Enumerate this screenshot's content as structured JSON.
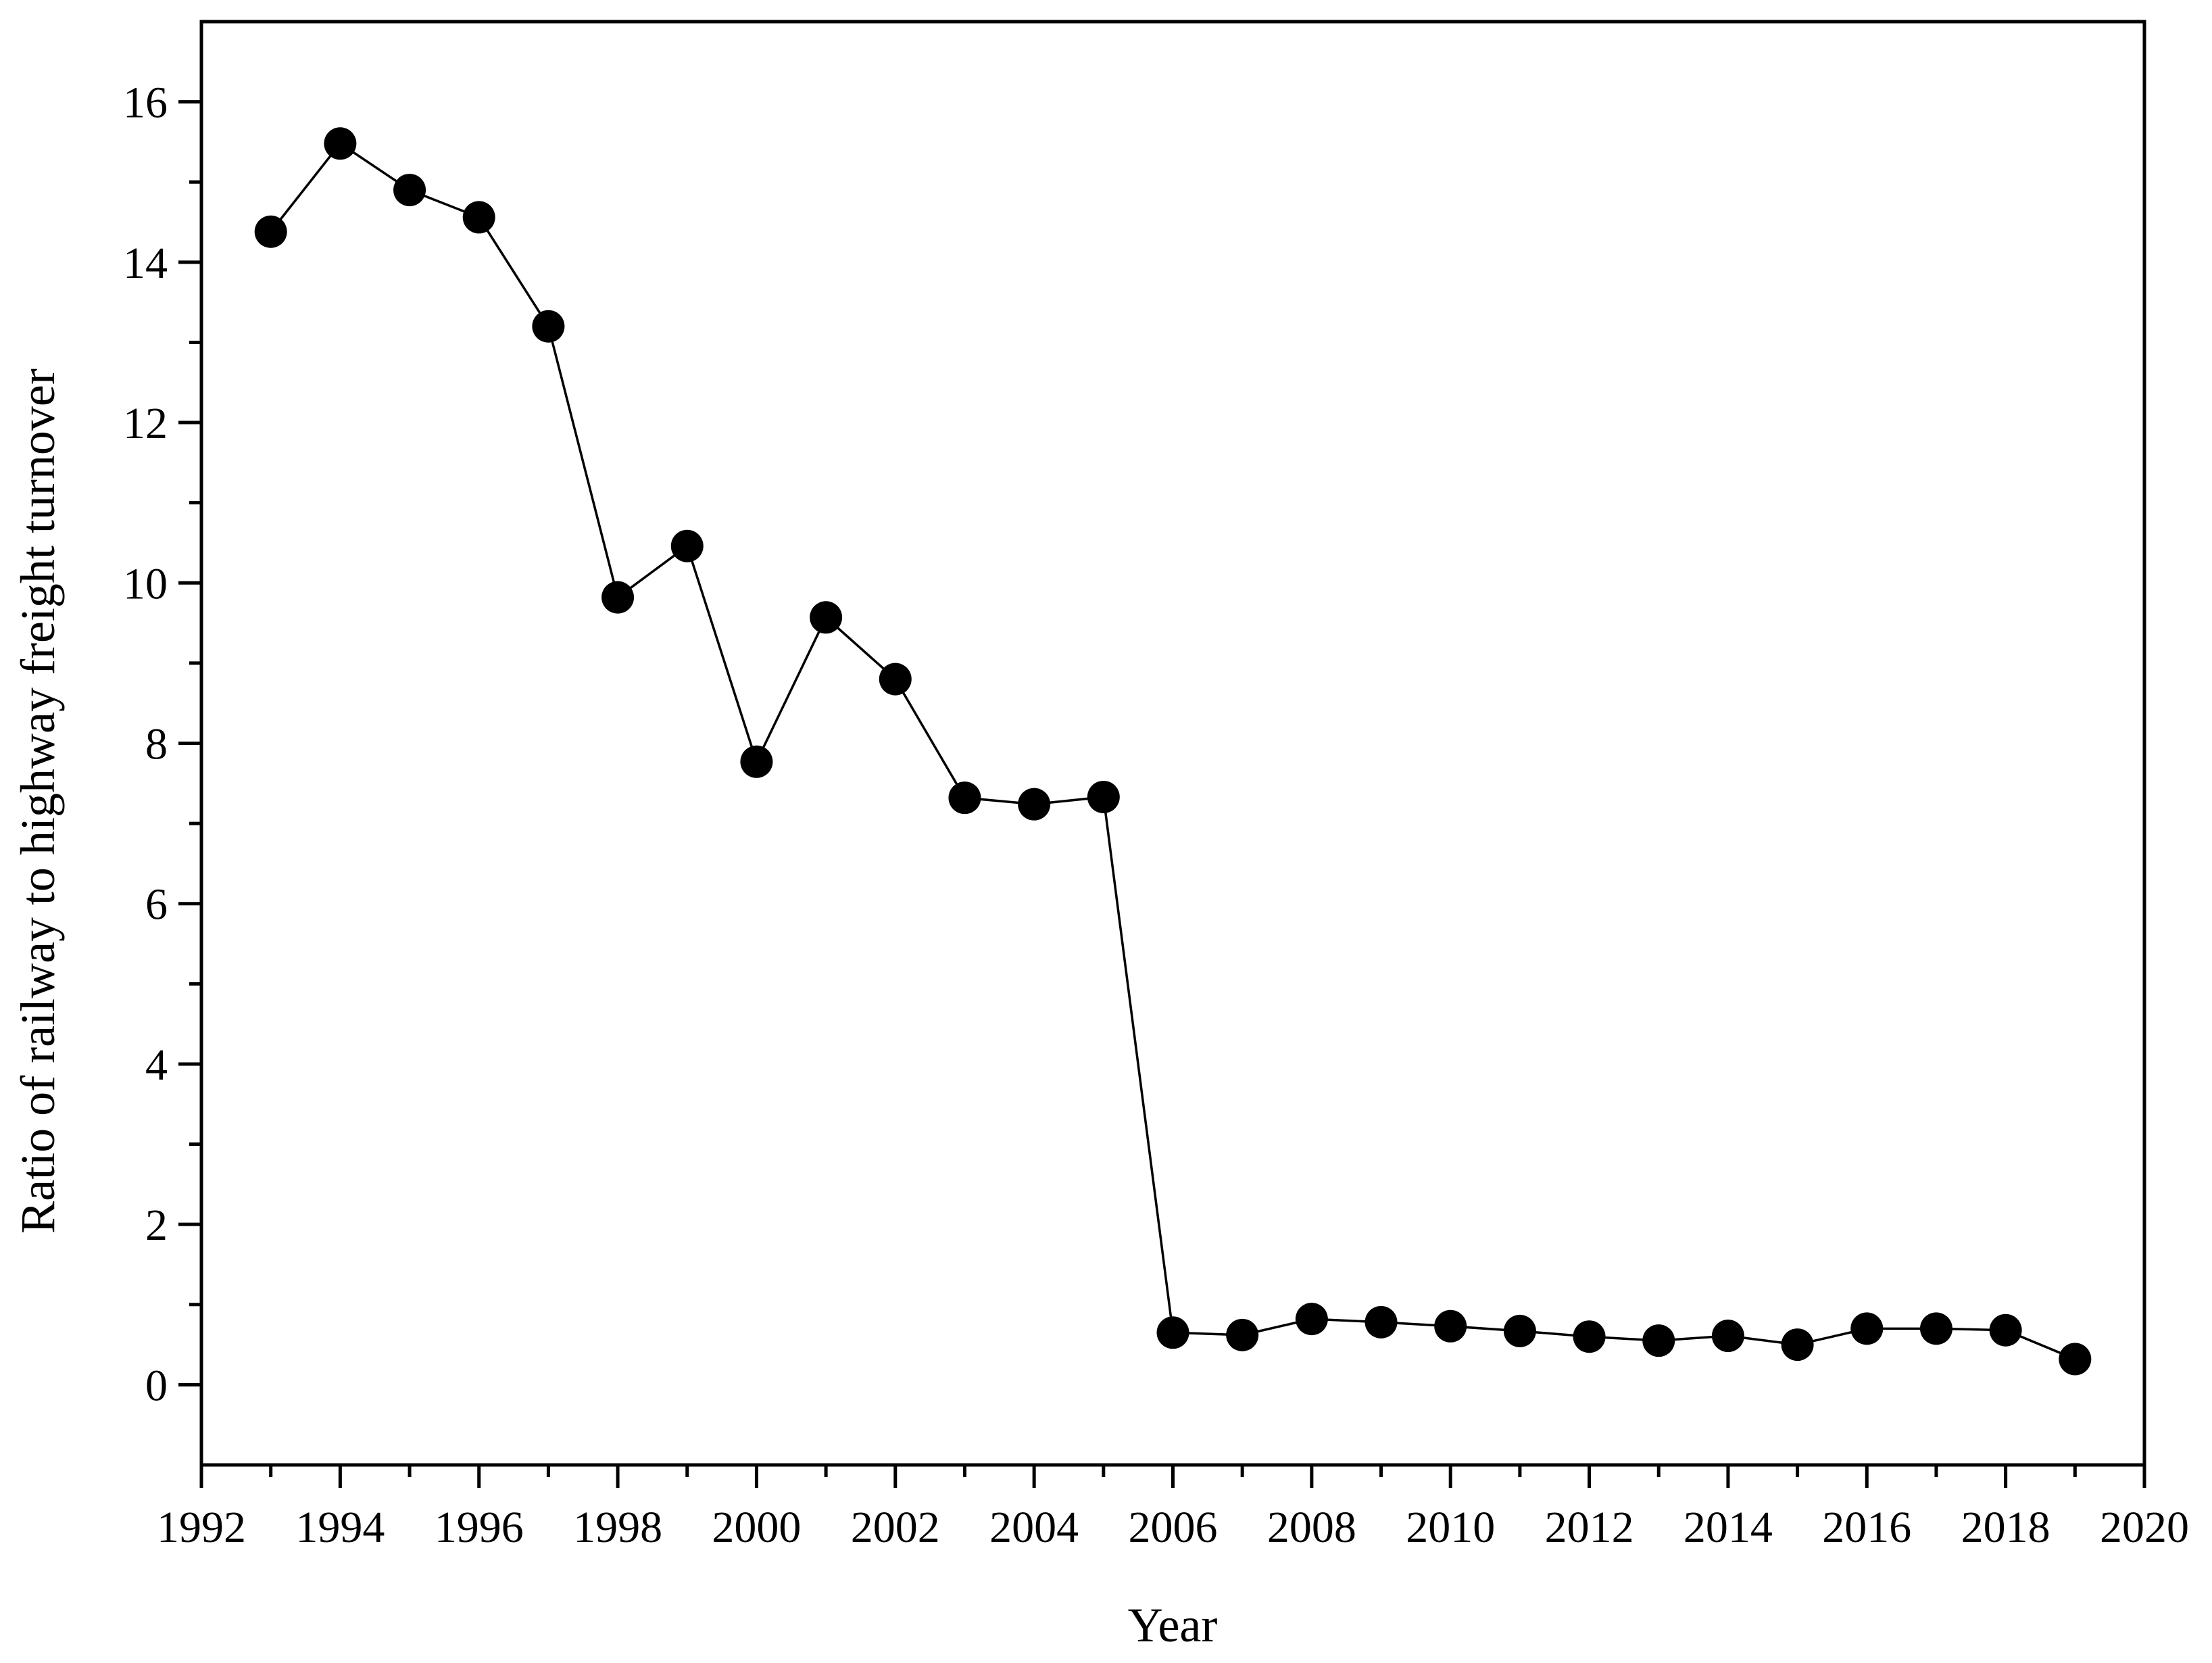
{
  "chart_data": {
    "type": "line",
    "title": "",
    "xlabel": "Year",
    "ylabel": "Ratio of railway to highway freight turnover",
    "xlim": [
      1992,
      2020
    ],
    "ylim": [
      -1,
      17
    ],
    "x_ticks": [
      1992,
      1994,
      1996,
      1998,
      2000,
      2002,
      2004,
      2006,
      2008,
      2010,
      2012,
      2014,
      2016,
      2018,
      2020
    ],
    "y_ticks": [
      0,
      2,
      4,
      6,
      8,
      10,
      12,
      14,
      16
    ],
    "x_minor_step": 1,
    "y_minor_step": 1,
    "grid": false,
    "legend": "none",
    "series": [
      {
        "marker": "filled-circle",
        "color": "#000000",
        "x": [
          1993,
          1994,
          1995,
          1996,
          1997,
          1998,
          1999,
          2000,
          2001,
          2002,
          2003,
          2004,
          2005,
          2006,
          2007,
          2008,
          2009,
          2010,
          2011,
          2012,
          2013,
          2014,
          2015,
          2016,
          2017,
          2018,
          2019
        ],
        "y": [
          14.38,
          15.48,
          14.9,
          14.56,
          13.2,
          9.82,
          10.46,
          7.77,
          9.57,
          8.8,
          7.32,
          7.24,
          7.33,
          0.65,
          0.62,
          0.82,
          0.78,
          0.73,
          0.67,
          0.6,
          0.55,
          0.61,
          0.5,
          0.7,
          0.7,
          0.68,
          0.32
        ]
      }
    ]
  }
}
